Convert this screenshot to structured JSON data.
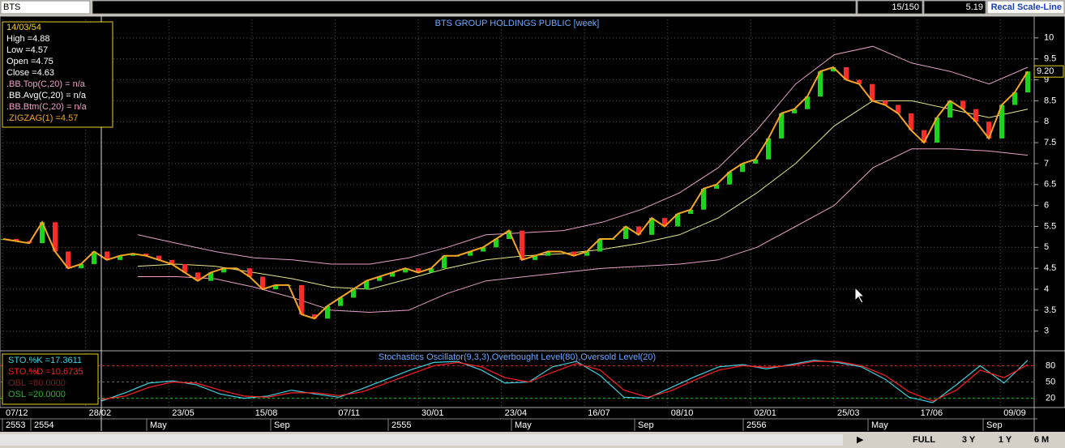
{
  "toolbar": {
    "symbol": "BTS",
    "count": "15/150",
    "price": "5.19",
    "button": "Recal Scale-Line"
  },
  "footer": {
    "buttons": [
      "FULL",
      "3 Y",
      "1 Y",
      "6 M"
    ]
  },
  "chart_data": [
    {
      "type": "candlestick",
      "title": "BTS GROUP HOLDINGS PUBLIC [week]",
      "info_lines": [
        "14/03/54",
        "High =4.88",
        "Low =4.57",
        "Open =4.75",
        "Close =4.63",
        ".BB.Top(C,20) = n/a",
        ".BB.Avg(C,20) = n/a",
        ".BB.Btm(C,20) = n/a",
        ".ZIGZAG(1) =4.57"
      ],
      "last_label": "9.20",
      "values": [
        5.2,
        5.15,
        5.1,
        5.6,
        4.9,
        4.5,
        4.6,
        4.9,
        4.7,
        4.8,
        4.85,
        4.8,
        4.7,
        4.6,
        4.4,
        4.2,
        4.4,
        4.5,
        4.5,
        4.3,
        4.0,
        4.1,
        4.1,
        3.4,
        3.3,
        3.6,
        3.8,
        4.0,
        4.2,
        4.3,
        4.4,
        4.5,
        4.4,
        4.5,
        4.8,
        4.8,
        4.9,
        5.0,
        5.2,
        5.4,
        4.7,
        4.8,
        4.9,
        4.9,
        4.8,
        4.9,
        5.2,
        5.2,
        5.5,
        5.3,
        5.7,
        5.5,
        5.8,
        5.9,
        6.4,
        6.5,
        6.8,
        7.0,
        7.1,
        7.6,
        8.2,
        8.3,
        8.6,
        9.2,
        9.3,
        9.0,
        8.9,
        8.5,
        8.4,
        8.2,
        7.8,
        7.5,
        8.1,
        8.5,
        8.3,
        8.0,
        7.6,
        8.4,
        8.7,
        9.2
      ],
      "colors": {
        "up": "#19d619",
        "down": "#ff2a2a",
        "zigzag": "#f5a623"
      },
      "bands": [
        {
          "color": "#e6a0c8",
          "values": [
            5.3,
            5.1,
            4.9,
            4.75,
            4.7,
            4.6,
            4.6,
            4.75,
            5.0,
            5.3,
            5.35,
            5.4,
            5.6,
            5.9,
            6.3,
            6.9,
            7.8,
            8.9,
            9.6,
            9.8,
            9.4,
            9.2,
            8.9,
            9.3
          ]
        },
        {
          "color": "#e8e88a",
          "values": [
            4.55,
            4.6,
            4.55,
            4.4,
            4.25,
            4.05,
            4.0,
            4.25,
            4.5,
            4.7,
            4.8,
            4.85,
            4.95,
            5.1,
            5.3,
            5.7,
            6.3,
            7.0,
            7.9,
            8.5,
            8.5,
            8.3,
            8.1,
            8.3
          ]
        },
        {
          "color": "#e6a0c8",
          "values": [
            4.3,
            4.3,
            4.25,
            4.05,
            3.8,
            3.5,
            3.45,
            3.5,
            3.9,
            4.2,
            4.3,
            4.4,
            4.5,
            4.55,
            4.6,
            4.7,
            5.0,
            5.5,
            6.0,
            6.9,
            7.35,
            7.35,
            7.3,
            7.2
          ]
        }
      ],
      "ylim": [
        2.55,
        10.48
      ],
      "yticks": [
        3,
        3.5,
        4,
        4.5,
        5,
        5.5,
        6,
        6.5,
        7,
        7.5,
        8,
        8.5,
        9,
        9.5,
        10
      ],
      "grid": true,
      "xticks": [
        "07/12",
        "28/02",
        "23/05",
        "15/08",
        "07/11",
        "30/01",
        "23/04",
        "16/07",
        "08/10",
        "02/01",
        "25/03",
        "17/06",
        "09/09"
      ],
      "xticks2": [
        "2553",
        "2554",
        "May",
        "Sep",
        "2555",
        "May",
        "Sep",
        "2556",
        "May",
        "Sep"
      ]
    },
    {
      "type": "line",
      "title": "Stochastics Oscillator(9,3,3),Overbought Level(80),Oversold Level(20)",
      "info_lines": [
        "STO.%K =17.3611",
        "STO.%D =10.6735",
        "OBL =80.0000",
        "OSL =20.0000"
      ],
      "series": [
        {
          "color": "#3fd0e0",
          "values": [
            15,
            30,
            48,
            52,
            45,
            28,
            20,
            24,
            35,
            28,
            22,
            38,
            55,
            72,
            86,
            88,
            72,
            48,
            50,
            78,
            88,
            62,
            22,
            20,
            40,
            60,
            78,
            82,
            74,
            82,
            90,
            86,
            78,
            55,
            22,
            12,
            45,
            80,
            48,
            90
          ]
        },
        {
          "color": "#ff2020",
          "values": [
            18,
            24,
            40,
            50,
            48,
            35,
            24,
            22,
            30,
            30,
            25,
            32,
            48,
            64,
            80,
            86,
            78,
            58,
            50,
            68,
            84,
            72,
            35,
            22,
            34,
            54,
            72,
            80,
            77,
            80,
            88,
            88,
            80,
            62,
            32,
            15,
            35,
            72,
            58,
            82
          ]
        }
      ],
      "ylim": [
        3,
        106
      ],
      "yticks": [
        20,
        50,
        80
      ]
    }
  ]
}
